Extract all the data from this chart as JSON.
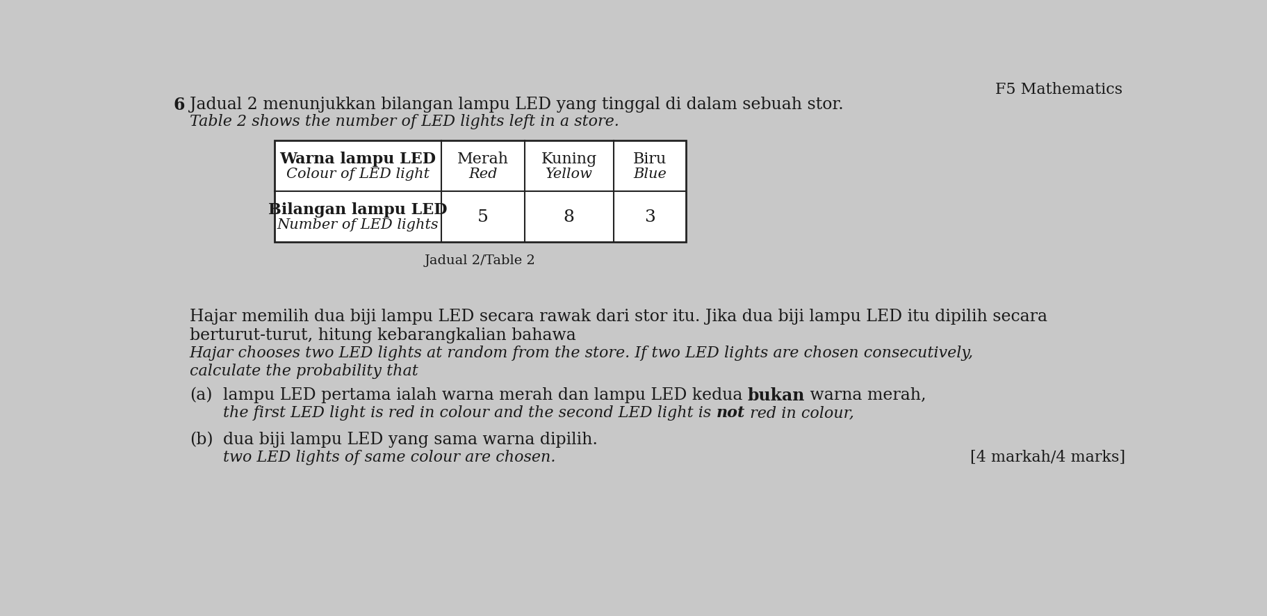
{
  "header_right": "F5 Mathematics",
  "question_number": "6",
  "line1_malay": "Jadual 2 menunjukkan bilangan lampu LED yang tinggal di dalam sebuah stor.",
  "line1_english": "Table 2 shows the number of LED lights left in a store.",
  "table_caption": "Jadual 2/Table 2",
  "table_header_col0_line1": "Warna lampu LED",
  "table_header_col0_line2": "Colour of LED light",
  "table_header_col1_line1": "Merah",
  "table_header_col1_line2": "Red",
  "table_header_col2_line1": "Kuning",
  "table_header_col2_line2": "Yellow",
  "table_header_col3_line1": "Biru",
  "table_header_col3_line2": "Blue",
  "table_row2_col0_line1": "Bilangan lampu LED",
  "table_row2_col0_line2": "Number of LED lights",
  "table_row2_col1": "5",
  "table_row2_col2": "8",
  "table_row2_col3": "3",
  "para1_malay": "Hajar memilih dua biji lampu LED secara rawak dari stor itu. Jika dua biji lampu LED itu dipilih secara",
  "para1_malay2": "berturut-turut, hitung kebarangkalian bahawa",
  "para1_english": "Hajar chooses two LED lights at random from the store. If two LED lights are chosen consecutively,",
  "para1_english2": "calculate the probability that",
  "part_a_label": "(a)",
  "part_a_malay": "lampu LED pertama ialah warna merah dan lampu LED kedua bukan warna merah,",
  "part_a_malay_pre": "lampu LED pertama ialah warna merah dan lampu LED kedua ",
  "part_a_malay_bold": "bukan",
  "part_a_malay_post": " warna merah,",
  "part_a_english_pre": "the first LED light is red in colour and the second LED light is ",
  "part_a_english_bold": "not",
  "part_a_english_post": " red in colour,",
  "part_b_label": "(b)",
  "part_b_malay": "dua biji lampu LED yang sama warna dipilih.",
  "part_b_english": "two LED lights of same colour are chosen.",
  "marks": "[4 markah/4 marks]",
  "bg_color": "#c8c8c8",
  "text_color": "#1a1a1a",
  "table_border_color": "#222222",
  "table_bg": "#ffffff",
  "font_size_main": 17,
  "font_size_table": 16,
  "font_size_caption": 14,
  "font_size_header": 16
}
